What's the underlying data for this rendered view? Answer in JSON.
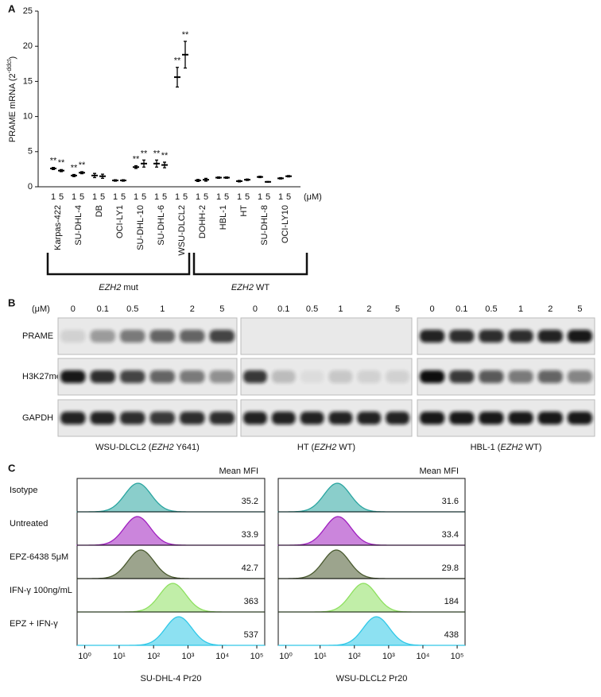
{
  "panels": [
    "A",
    "B",
    "C"
  ],
  "chart_data": [
    {
      "type": "dotplot",
      "ylabel": [
        "PRAME mRNA (2",
        "-ddct",
        ")"
      ],
      "categories": [
        "Karpas-422",
        "SU-DHL-4",
        "DB",
        "OCI-LY1",
        "SU-DHL-10",
        "SU-DHL-6",
        "WSU-DLCL2",
        "DOHH-2",
        "HBL-1",
        "HT",
        "SU-DHL-8",
        "OCI-LY10"
      ],
      "unit": "(μM)",
      "series": [
        {
          "name": "1",
          "color": "#000000",
          "values": [
            2.6,
            1.6,
            1.6,
            0.9,
            2.8,
            3.3,
            15.6,
            0.9,
            1.3,
            0.8,
            1.4,
            1.2
          ],
          "errors": [
            0.15,
            0.15,
            0.3,
            0.1,
            0.2,
            0.5,
            1.4,
            0.15,
            0.1,
            0.1,
            0.1,
            0.1
          ],
          "annotations": [
            "**",
            "**",
            null,
            null,
            "**",
            "**",
            "**",
            null,
            null,
            null,
            null,
            null
          ]
        },
        {
          "name": "5",
          "color": "#000000",
          "values": [
            2.3,
            2.0,
            1.5,
            0.9,
            3.3,
            3.1,
            18.8,
            1.0,
            1.3,
            1.0,
            0.7,
            1.5
          ],
          "errors": [
            0.15,
            0.15,
            0.3,
            0.1,
            0.5,
            0.4,
            1.9,
            0.2,
            0.1,
            0.1,
            0.05,
            0.1
          ],
          "annotations": [
            "**",
            "**",
            null,
            null,
            "**",
            "**",
            "**",
            null,
            null,
            null,
            null,
            null
          ]
        }
      ],
      "ylim": [
        0,
        25
      ],
      "yticks": [
        0,
        5,
        10,
        15,
        20,
        25
      ],
      "groups": [
        [
          "EZH2",
          " mut"
        ],
        [
          "EZH2",
          " WT"
        ]
      ]
    },
    {
      "type": "ridge",
      "categories": [
        "Isotype",
        "Untreated",
        "EPZ-6438 5μM",
        "IFN-γ 100ng/mL",
        "EPZ + IFN-γ"
      ],
      "value_header": "Mean MFI",
      "values": [
        35.2,
        33.9,
        42.7,
        363,
        537
      ],
      "colors": [
        "#2aa5a0",
        "#a020c0",
        "#4a5a30",
        "#8ee060",
        "#30c8e8"
      ],
      "xlabel": "SU-DHL-4 Pr20",
      "xscale": "log",
      "xlim": [
        0.6,
        170000
      ],
      "xticks": [
        {
          "value": 1,
          "label": "10⁰"
        },
        {
          "value": 10,
          "label": "10¹"
        },
        {
          "value": 100,
          "label": "10²"
        },
        {
          "value": 1000,
          "label": "10³"
        },
        {
          "value": 10000,
          "label": "10⁴"
        },
        {
          "value": 100000,
          "label": "10⁵"
        }
      ]
    },
    {
      "type": "ridge",
      "value_header": "Mean MFI",
      "values": [
        31.6,
        33.4,
        29.8,
        184,
        438
      ],
      "colors": [
        "#2aa5a0",
        "#a020c0",
        "#4a5a30",
        "#8ee060",
        "#30c8e8"
      ],
      "xlabel": "WSU-DLCL2 Pr20",
      "xscale": "log",
      "xlim": [
        0.6,
        170000
      ],
      "xticks": [
        {
          "value": 1,
          "label": "10⁰"
        },
        {
          "value": 10,
          "label": "10¹"
        },
        {
          "value": 100,
          "label": "10²"
        },
        {
          "value": 1000,
          "label": "10³"
        },
        {
          "value": 10000,
          "label": "10⁴"
        },
        {
          "value": 100000,
          "label": "10⁵"
        }
      ]
    }
  ],
  "blot": {
    "unit": "(μM)",
    "doses": [
      0,
      0.1,
      0.5,
      1,
      2,
      5
    ],
    "rows": [
      "PRAME",
      "H3K27me3",
      "GAPDH"
    ],
    "panels": [
      {
        "caption": [
          "WSU-DLCL2 (",
          "EZH2",
          " Y641)"
        ],
        "intensity": [
          [
            0.1,
            0.35,
            0.5,
            0.6,
            0.6,
            0.75
          ],
          [
            0.95,
            0.85,
            0.75,
            0.6,
            0.5,
            0.4
          ],
          [
            0.9,
            0.9,
            0.85,
            0.8,
            0.85,
            0.85
          ]
        ]
      },
      {
        "caption": [
          "HT (",
          "EZH2",
          " WT)"
        ],
        "intensity": [
          [
            0,
            0,
            0,
            0,
            0,
            0
          ],
          [
            0.8,
            0.2,
            0.05,
            0.15,
            0.1,
            0.1
          ],
          [
            0.9,
            0.9,
            0.9,
            0.9,
            0.9,
            0.9
          ]
        ]
      },
      {
        "caption": [
          "HBL-1 (",
          "EZH2",
          " WT)"
        ],
        "intensity": [
          [
            0.9,
            0.85,
            0.85,
            0.85,
            0.9,
            0.95
          ],
          [
            1,
            0.8,
            0.65,
            0.5,
            0.6,
            0.45
          ],
          [
            0.95,
            0.95,
            0.95,
            0.95,
            0.95,
            0.95
          ]
        ]
      }
    ]
  }
}
